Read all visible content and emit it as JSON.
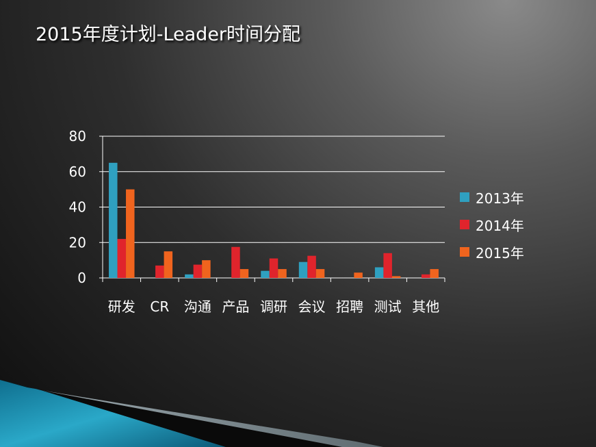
{
  "slide": {
    "title": "2015年度计划-Leader时间分配"
  },
  "chart_data": {
    "type": "bar",
    "title": "",
    "xlabel": "",
    "ylabel": "",
    "categories": [
      "研发",
      "CR",
      "沟通",
      "产品",
      "调研",
      "会议",
      "招聘",
      "测试",
      "其他"
    ],
    "series": [
      {
        "name": "2013年",
        "color": "#2fa0c0",
        "values": [
          65,
          0,
          2,
          0,
          4,
          9,
          0,
          6,
          0
        ]
      },
      {
        "name": "2014年",
        "color": "#e0242c",
        "values": [
          22,
          7,
          7.5,
          17.5,
          11,
          12.5,
          0,
          14,
          2
        ]
      },
      {
        "name": "2015年",
        "color": "#f0641e",
        "values": [
          50,
          15,
          10,
          5,
          5,
          5,
          3,
          1,
          5
        ]
      }
    ],
    "ylim": [
      0,
      80
    ],
    "yticks": [
      0,
      20,
      40,
      60,
      80
    ],
    "grid": true,
    "legend_position": "right"
  }
}
